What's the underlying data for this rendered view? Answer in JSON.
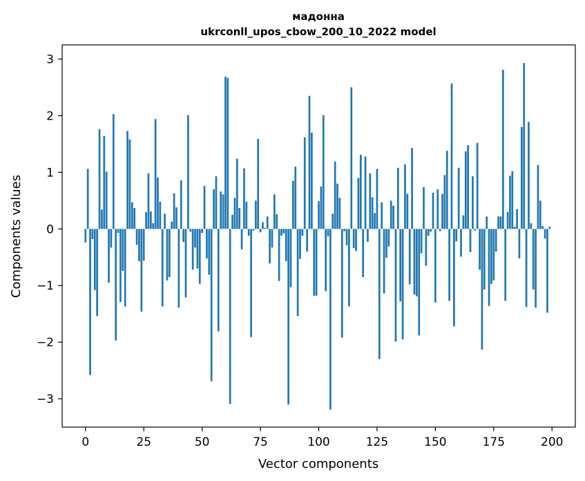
{
  "chart_data": {
    "type": "bar",
    "title": "мадонна",
    "subtitle": "ukrconll_upos_cbow_200_10_2022 model",
    "xlabel": "Vector components",
    "ylabel": "Components values",
    "xlim": [
      -10,
      210
    ],
    "ylim": [
      -3.5,
      3.25
    ],
    "xticks": [
      0,
      25,
      50,
      75,
      100,
      125,
      150,
      175,
      200
    ],
    "xtick_labels": [
      "0",
      "25",
      "50",
      "75",
      "100",
      "125",
      "150",
      "175",
      "200"
    ],
    "yticks": [
      -3,
      -2,
      -1,
      0,
      1,
      2,
      3
    ],
    "ytick_labels": [
      "−3",
      "−2",
      "−1",
      "0",
      "1",
      "2",
      "3"
    ],
    "grid": false,
    "bar_color": "#1f77b4",
    "x": [
      0,
      1,
      2,
      3,
      4,
      5,
      6,
      7,
      8,
      9,
      10,
      11,
      12,
      13,
      14,
      15,
      16,
      17,
      18,
      19,
      20,
      21,
      22,
      23,
      24,
      25,
      26,
      27,
      28,
      29,
      30,
      31,
      32,
      33,
      34,
      35,
      36,
      37,
      38,
      39,
      40,
      41,
      42,
      43,
      44,
      45,
      46,
      47,
      48,
      49,
      50,
      51,
      52,
      53,
      54,
      55,
      56,
      57,
      58,
      59,
      60,
      61,
      62,
      63,
      64,
      65,
      66,
      67,
      68,
      69,
      70,
      71,
      72,
      73,
      74,
      75,
      76,
      77,
      78,
      79,
      80,
      81,
      82,
      83,
      84,
      85,
      86,
      87,
      88,
      89,
      90,
      91,
      92,
      93,
      94,
      95,
      96,
      97,
      98,
      99,
      100,
      101,
      102,
      103,
      104,
      105,
      106,
      107,
      108,
      109,
      110,
      111,
      112,
      113,
      114,
      115,
      116,
      117,
      118,
      119,
      120,
      121,
      122,
      123,
      124,
      125,
      126,
      127,
      128,
      129,
      130,
      131,
      132,
      133,
      134,
      135,
      136,
      137,
      138,
      139,
      140,
      141,
      142,
      143,
      144,
      145,
      146,
      147,
      148,
      149,
      150,
      151,
      152,
      153,
      154,
      155,
      156,
      157,
      158,
      159,
      160,
      161,
      162,
      163,
      164,
      165,
      166,
      167,
      168,
      169,
      170,
      171,
      172,
      173,
      174,
      175,
      176,
      177,
      178,
      179,
      180,
      181,
      182,
      183,
      184,
      185,
      186,
      187,
      188,
      189,
      190,
      191,
      192,
      193,
      194,
      195,
      196,
      197,
      198,
      199
    ],
    "values": [
      -0.24,
      1.06,
      -2.58,
      -0.18,
      -1.08,
      -1.54,
      1.76,
      0.34,
      1.64,
      1.01,
      -0.95,
      -0.33,
      2.03,
      -1.97,
      -0.07,
      -1.29,
      -0.74,
      -1.37,
      1.73,
      1.58,
      0.47,
      0.37,
      -0.28,
      -0.57,
      -1.46,
      -0.56,
      0.3,
      0.98,
      0.31,
      0.1,
      1.94,
      0.91,
      0.48,
      -1.37,
      0.27,
      -0.91,
      -0.85,
      0.13,
      0.63,
      0.38,
      -1.39,
      0.86,
      -0.23,
      -1.21,
      2.01,
      -0.05,
      -0.72,
      -0.33,
      -0.7,
      -0.97,
      -0.07,
      0.76,
      -0.52,
      -0.81,
      -2.69,
      0.7,
      0.93,
      -1.81,
      0.66,
      0.61,
      2.69,
      2.67,
      -3.09,
      0.25,
      0.55,
      1.24,
      0.37,
      -0.36,
      1.07,
      0.48,
      -0.12,
      -1.91,
      -0.03,
      0.5,
      1.59,
      -0.06,
      0.12,
      0.02,
      0.22,
      -0.61,
      -0.33,
      0.61,
      0.26,
      -0.92,
      -0.12,
      -0.08,
      -0.57,
      -3.1,
      -1.03,
      0.85,
      1.1,
      -1.54,
      -0.53,
      -0.12,
      1.62,
      -0.4,
      2.35,
      1.7,
      -1.18,
      -1.18,
      0.49,
      0.75,
      2.01,
      -1.1,
      -0.13,
      -3.19,
      0.27,
      1.19,
      0.8,
      0.55,
      -1.92,
      -0.04,
      -0.29,
      -1.37,
      2.5,
      -0.34,
      -0.39,
      0.9,
      1.31,
      -0.85,
      1.28,
      -0.23,
      0.98,
      0.56,
      0.28,
      1.06,
      -2.3,
      0.47,
      -1.14,
      -0.51,
      -0.31,
      0.5,
      0.41,
      -1.99,
      1.08,
      -1.28,
      -1.95,
      1.14,
      0.62,
      -0.98,
      1.43,
      -1.16,
      -1.19,
      -1.88,
      -0.43,
      0.74,
      -0.65,
      -0.12,
      -0.05,
      0.64,
      -1.3,
      0.7,
      -0.04,
      0.62,
      0.95,
      1.38,
      -1.27,
      2.57,
      -1.72,
      -0.22,
      1.08,
      -0.49,
      0.24,
      1.37,
      1.48,
      -0.41,
      0.93,
      -0.03,
      1.52,
      -0.72,
      -2.13,
      -1.07,
      0.22,
      -1.36,
      -0.97,
      -0.91,
      -0.4,
      0.22,
      0.22,
      2.81,
      -1.27,
      0.3,
      0.94,
      1.02,
      0.04,
      0.35,
      -0.52,
      1.8,
      2.93,
      -1.38,
      1.89,
      0.1,
      -1.07,
      -1.39,
      1.13,
      0.5,
      0.05,
      -0.17,
      -1.48,
      0.04
    ]
  }
}
